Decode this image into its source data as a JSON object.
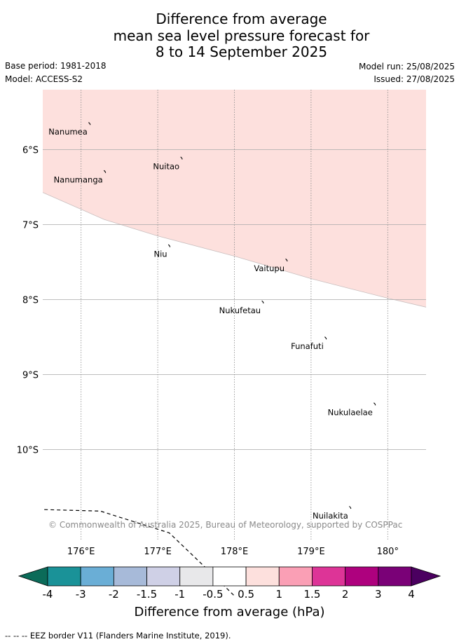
{
  "title": {
    "line1": "Difference from average",
    "line2": "mean sea level pressure forecast for",
    "line3": "8 to 14 September 2025"
  },
  "meta": {
    "base_period": "Base period: 1981-2018",
    "model": "Model: ACCESS-S2",
    "model_run": "Model run: 25/08/2025",
    "issued": "Issued: 27/08/2025"
  },
  "map": {
    "extent": {
      "lon": [
        175.5,
        180.5
      ],
      "lat": [
        -11.2,
        -5.2
      ]
    },
    "lat_ticks": [
      {
        "value": -6,
        "label": "6°S"
      },
      {
        "value": -7,
        "label": "7°S"
      },
      {
        "value": -8,
        "label": "8°S"
      },
      {
        "value": -9,
        "label": "9°S"
      },
      {
        "value": -10,
        "label": "10°S"
      }
    ],
    "lon_ticks": [
      {
        "value": 176,
        "label": "176°E"
      },
      {
        "value": 177,
        "label": "177°E"
      },
      {
        "value": 178,
        "label": "178°E"
      },
      {
        "value": 179,
        "label": "179°E"
      },
      {
        "value": 180,
        "label": "180°"
      }
    ],
    "anomaly_region": {
      "range": "0.5 to 1 hPa",
      "color": "#fde0dd",
      "southern_edge": [
        [
          175.5,
          -6.57
        ],
        [
          176.3,
          -6.93
        ],
        [
          177.0,
          -7.15
        ],
        [
          178.0,
          -7.42
        ],
        [
          179.0,
          -7.72
        ],
        [
          179.5,
          -7.85
        ],
        [
          180.0,
          -7.98
        ],
        [
          180.5,
          -8.1
        ]
      ]
    },
    "eez_line": [
      [
        175.52,
        -10.8
      ],
      [
        176.25,
        -10.82
      ],
      [
        177.15,
        -11.11
      ],
      [
        177.6,
        -11.55
      ],
      [
        178.0,
        -11.95
      ]
    ],
    "places": [
      {
        "name": "Nanumea",
        "lon": 176.12,
        "lat": -5.66
      },
      {
        "name": "Nuitao",
        "lon": 177.32,
        "lat": -6.12
      },
      {
        "name": "Nanumanga",
        "lon": 176.32,
        "lat": -6.3
      },
      {
        "name": "Niu",
        "lon": 177.16,
        "lat": -7.29
      },
      {
        "name": "Vaitupu",
        "lon": 178.69,
        "lat": -7.48
      },
      {
        "name": "Nukufetau",
        "lon": 178.38,
        "lat": -8.04
      },
      {
        "name": "Funafuti",
        "lon": 179.2,
        "lat": -8.52
      },
      {
        "name": "Nukulaelae",
        "lon": 179.84,
        "lat": -9.4
      },
      {
        "name": "Nuilakita",
        "lon": 179.52,
        "lat": -10.78
      }
    ]
  },
  "credit": "© Commonwealth of Australia 2025, Bureau of Meteorology, supported by COSPPac",
  "colorbar": {
    "label": "Difference from average (hPa)",
    "ticks": [
      "-4",
      "-3",
      "-2",
      "-1.5",
      "-1",
      "-0.5",
      "0.5",
      "1",
      "1.5",
      "2",
      "3",
      "4"
    ],
    "under_color": "#0b6b59",
    "over_color": "#4b0060",
    "colors": [
      "#1a9298",
      "#6aaed6",
      "#a7bad9",
      "#cfd0e6",
      "#e8e8ea",
      "#ffffff",
      "#fde0dd",
      "#fa9fb5",
      "#dd3497",
      "#ae017e",
      "#7a0177"
    ]
  },
  "footer": "--  --  -- EEZ border V11 (Flanders Marine Institute, 2019)."
}
